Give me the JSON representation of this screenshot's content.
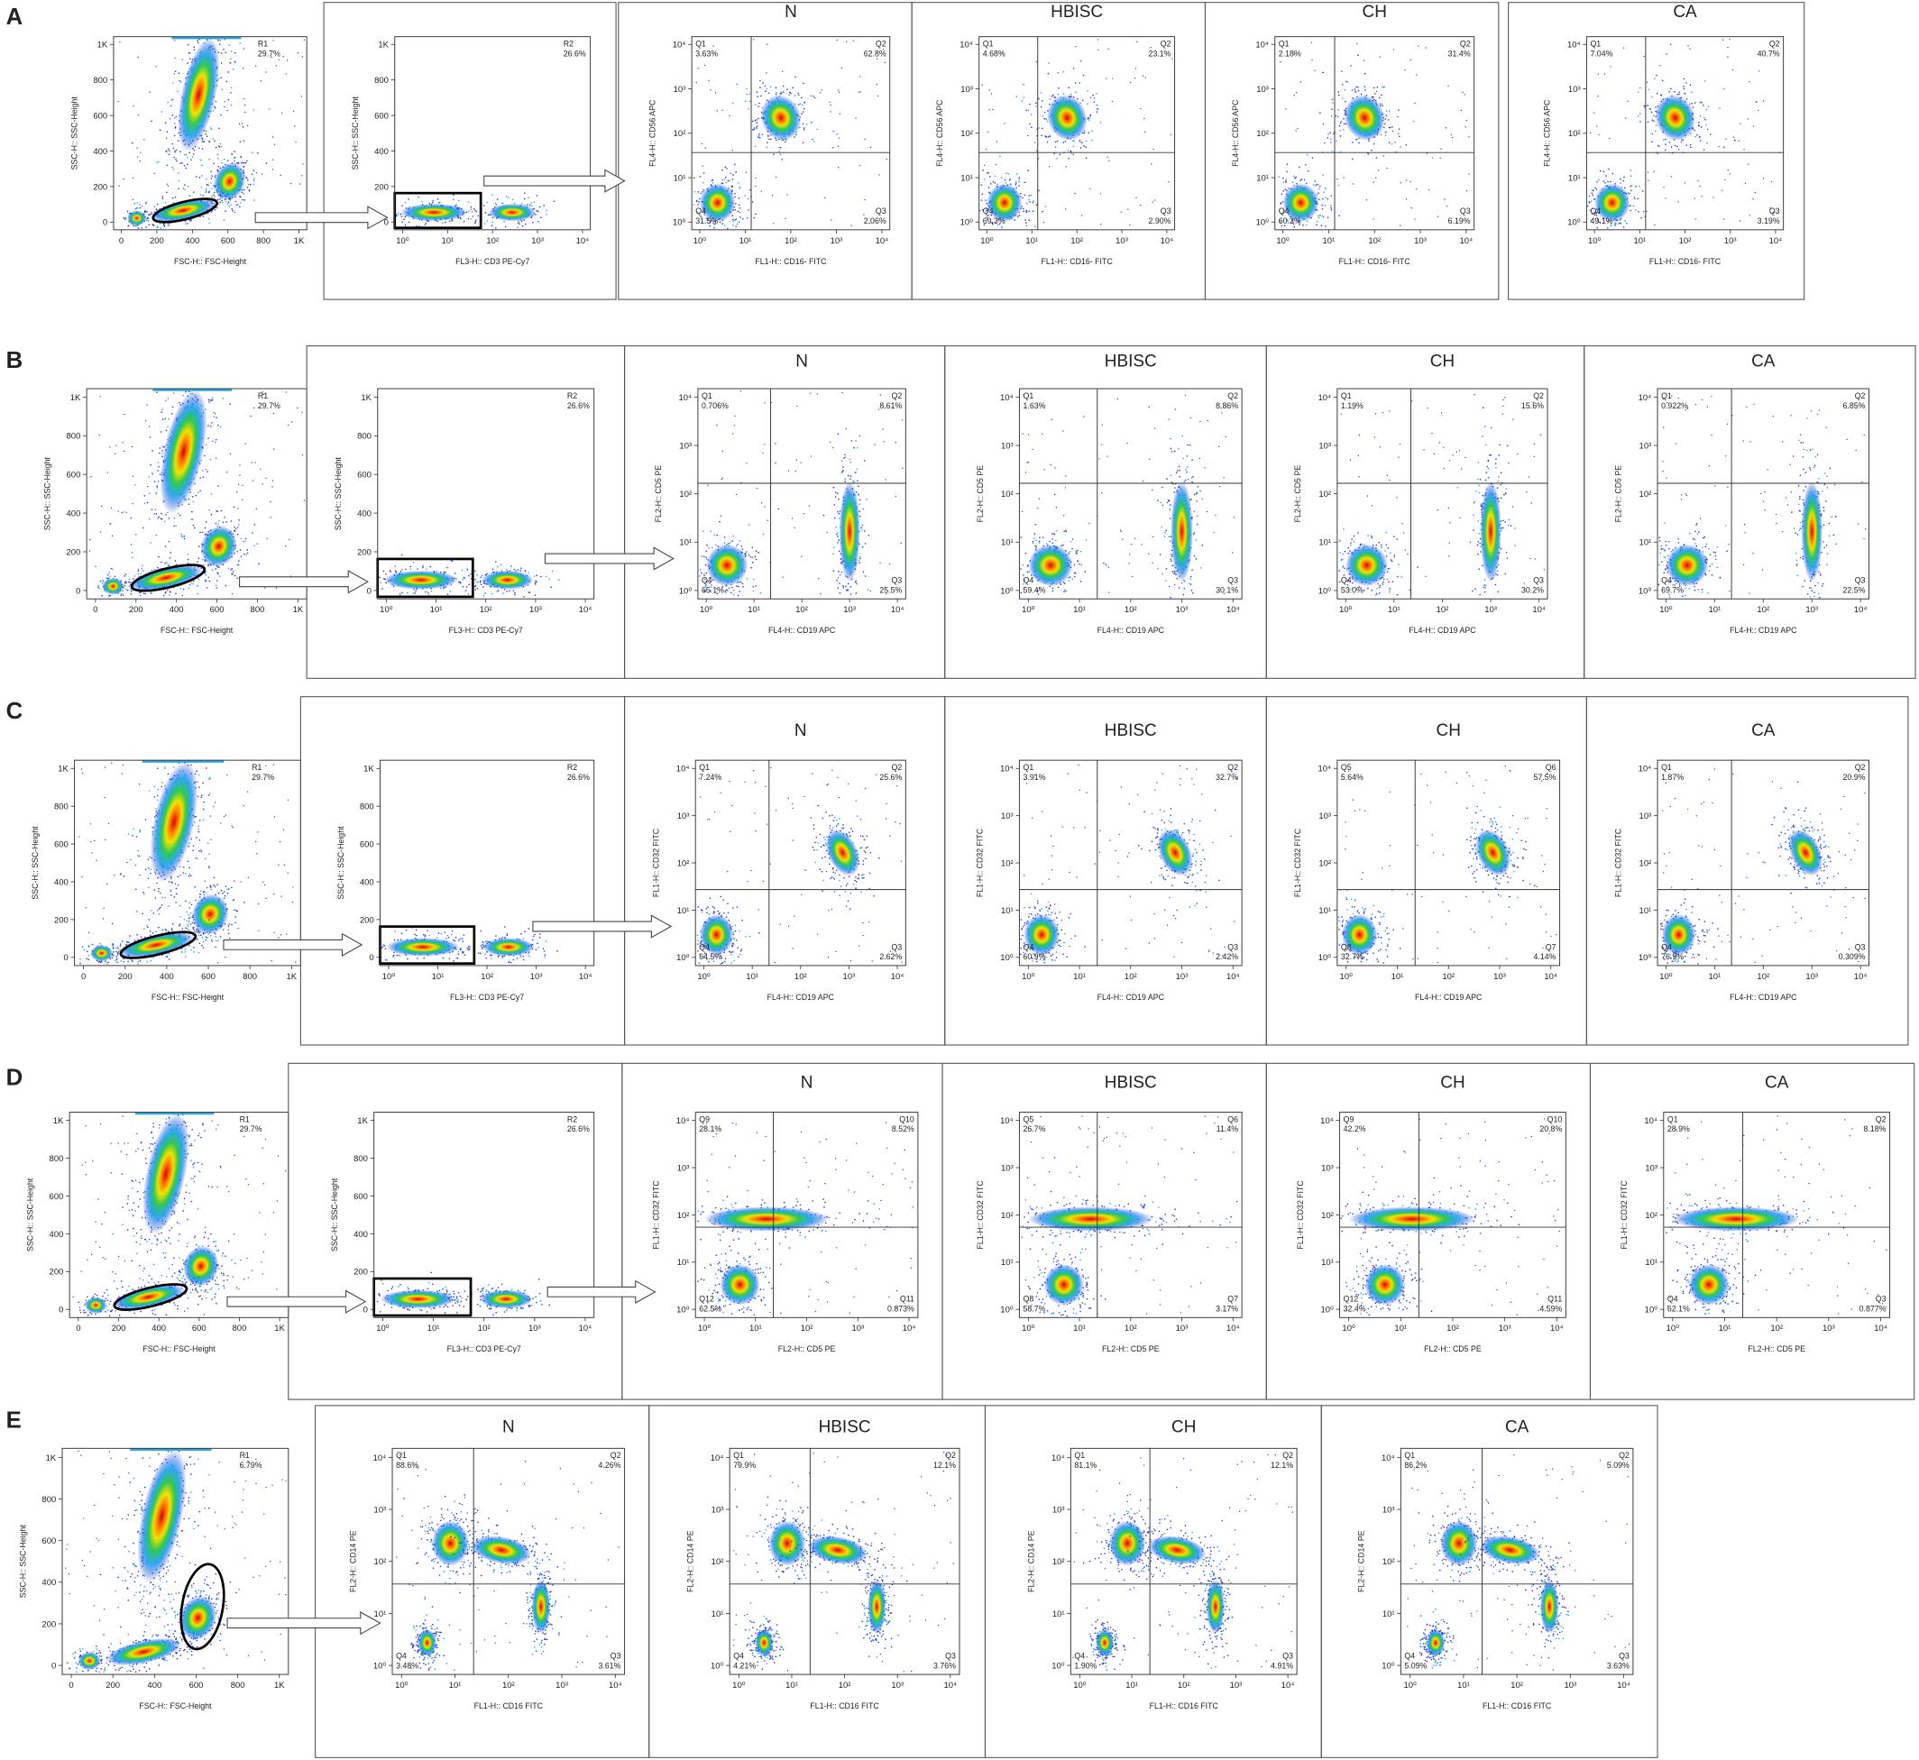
{
  "axes": {
    "linear_ticks": [
      "0",
      "200",
      "400",
      "600",
      "800",
      "1K"
    ],
    "log_ticks": [
      "10⁰",
      "10¹",
      "10²",
      "10³",
      "10⁴"
    ]
  },
  "rows": [
    {
      "letter": "A",
      "gate1": {
        "label": "R1",
        "pct": "29.7%",
        "xlabel": "FSC-H:: FSC-Height",
        "ylabel": "SSC-H:: SSC-Height"
      },
      "gate2": {
        "label": "R2",
        "pct": "26.6%",
        "xlabel": "FL3-H:: CD3 PE-Cy7",
        "ylabel": "SSC-H:: SSC-Height"
      },
      "xlabel": "FL1-H:: CD16- FITC",
      "ylabel": "FL4-H:: CD56 APC",
      "plots": [
        {
          "title": "N",
          "quadrants": [
            {
              "name": "Q1",
              "pct": "3.63%"
            },
            {
              "name": "Q2",
              "pct": "62.8%"
            },
            {
              "name": "Q3",
              "pct": "2.06%"
            },
            {
              "name": "Q4",
              "pct": "31.5%"
            }
          ]
        },
        {
          "title": "HBISC",
          "quadrants": [
            {
              "name": "Q1",
              "pct": "4.68%"
            },
            {
              "name": "Q2",
              "pct": "23.1%"
            },
            {
              "name": "Q3",
              "pct": "2.90%"
            },
            {
              "name": "Q4",
              "pct": "69.3%"
            }
          ]
        },
        {
          "title": "CH",
          "quadrants": [
            {
              "name": "Q1",
              "pct": "2.18%"
            },
            {
              "name": "Q2",
              "pct": "31.4%"
            },
            {
              "name": "Q3",
              "pct": "6.19%"
            },
            {
              "name": "Q4",
              "pct": "60.3%"
            }
          ]
        },
        {
          "title": "CA",
          "quadrants": [
            {
              "name": "Q1",
              "pct": "7.04%"
            },
            {
              "name": "Q2",
              "pct": "40.7%"
            },
            {
              "name": "Q3",
              "pct": "3.19%"
            },
            {
              "name": "Q4",
              "pct": "49.1%"
            }
          ]
        }
      ]
    },
    {
      "letter": "B",
      "gate1": {
        "label": "R1",
        "pct": "29.7%",
        "xlabel": "FSC-H:: FSC-Height",
        "ylabel": "SSC-H:: SSC-Height"
      },
      "gate2": {
        "label": "R2",
        "pct": "26.6%",
        "xlabel": "FL3-H:: CD3 PE-Cy7",
        "ylabel": "SSC-H:: SSC-Height"
      },
      "xlabel": "FL4-H:: CD19 APC",
      "ylabel": "FL2-H:: CD5 PE",
      "plots": [
        {
          "title": "N",
          "quadrants": [
            {
              "name": "Q1",
              "pct": "0.706%"
            },
            {
              "name": "Q2",
              "pct": "8.61%"
            },
            {
              "name": "Q3",
              "pct": "25.5%"
            },
            {
              "name": "Q4",
              "pct": "65.1%"
            }
          ]
        },
        {
          "title": "HBISC",
          "quadrants": [
            {
              "name": "Q1",
              "pct": "1.63%"
            },
            {
              "name": "Q2",
              "pct": "8.86%"
            },
            {
              "name": "Q3",
              "pct": "30.1%"
            },
            {
              "name": "Q4",
              "pct": "59.4%"
            }
          ]
        },
        {
          "title": "CH",
          "quadrants": [
            {
              "name": "Q1",
              "pct": "1.19%"
            },
            {
              "name": "Q2",
              "pct": "15.6%"
            },
            {
              "name": "Q3",
              "pct": "30.2%"
            },
            {
              "name": "Q4",
              "pct": "53.0%"
            }
          ]
        },
        {
          "title": "CA",
          "quadrants": [
            {
              "name": "Q1",
              "pct": "0.922%"
            },
            {
              "name": "Q2",
              "pct": "6.85%"
            },
            {
              "name": "Q3",
              "pct": "22.5%"
            },
            {
              "name": "Q4",
              "pct": "69.7%"
            }
          ]
        }
      ]
    },
    {
      "letter": "C",
      "gate1": {
        "label": "R1",
        "pct": "29.7%",
        "xlabel": "FSC-H:: FSC-Height",
        "ylabel": "SSC-H:: SSC-Height"
      },
      "gate2": {
        "label": "R2",
        "pct": "26.6%",
        "xlabel": "FL3-H:: CD3 PE-Cy7",
        "ylabel": "SSC-H:: SSC-Height"
      },
      "xlabel": "FL4-H:: CD19 APC",
      "ylabel": "FL1-H:: CD32 FITC",
      "plots": [
        {
          "title": "N",
          "quadrants": [
            {
              "name": "Q1",
              "pct": "7.24%"
            },
            {
              "name": "Q2",
              "pct": "25.6%"
            },
            {
              "name": "Q3",
              "pct": "2.62%"
            },
            {
              "name": "Q4",
              "pct": "64.5%"
            }
          ]
        },
        {
          "title": "HBISC",
          "quadrants": [
            {
              "name": "Q1",
              "pct": "3.91%"
            },
            {
              "name": "Q2",
              "pct": "32.7%"
            },
            {
              "name": "Q3",
              "pct": "2.42%"
            },
            {
              "name": "Q4",
              "pct": "60.9%"
            }
          ]
        },
        {
          "title": "CH",
          "quadrants": [
            {
              "name": "Q5",
              "pct": "5.64%"
            },
            {
              "name": "Q6",
              "pct": "57.5%"
            },
            {
              "name": "Q7",
              "pct": "4.14%"
            },
            {
              "name": "Q8",
              "pct": "32.7%"
            }
          ]
        },
        {
          "title": "CA",
          "quadrants": [
            {
              "name": "Q1",
              "pct": "1.87%"
            },
            {
              "name": "Q2",
              "pct": "20.9%"
            },
            {
              "name": "Q3",
              "pct": "0.309%"
            },
            {
              "name": "Q4",
              "pct": "76.9%"
            }
          ]
        }
      ]
    },
    {
      "letter": "D",
      "gate1": {
        "label": "R1",
        "pct": "29.7%",
        "xlabel": "FSC-H:: FSC-Height",
        "ylabel": "SSC-H:: SSC-Height"
      },
      "gate2": {
        "label": "R2",
        "pct": "26.6%",
        "xlabel": "FL3-H:: CD3 PE-Cy7",
        "ylabel": "SSC-H:: SSC-Height"
      },
      "xlabel": "FL2-H:: CD5 PE",
      "ylabel": "FL1-H:: CD32 FITC",
      "plots": [
        {
          "title": "N",
          "quadrants": [
            {
              "name": "Q9",
              "pct": "28.1%"
            },
            {
              "name": "Q10",
              "pct": "8.52%"
            },
            {
              "name": "Q11",
              "pct": "0.873%"
            },
            {
              "name": "Q12",
              "pct": "62.5%"
            }
          ]
        },
        {
          "title": "HBISC",
          "quadrants": [
            {
              "name": "Q5",
              "pct": "26.7%"
            },
            {
              "name": "Q6",
              "pct": "11.4%"
            },
            {
              "name": "Q7",
              "pct": "3.17%"
            },
            {
              "name": "Q8",
              "pct": "58.7%"
            }
          ]
        },
        {
          "title": "CH",
          "quadrants": [
            {
              "name": "Q9",
              "pct": "42.2%"
            },
            {
              "name": "Q10",
              "pct": "20.8%"
            },
            {
              "name": "Q11",
              "pct": "4.59%"
            },
            {
              "name": "Q12",
              "pct": "32.4%"
            }
          ]
        },
        {
          "title": "CA",
          "quadrants": [
            {
              "name": "Q1",
              "pct": "28.9%"
            },
            {
              "name": "Q2",
              "pct": "8.18%"
            },
            {
              "name": "Q3",
              "pct": "0.877%"
            },
            {
              "name": "Q4",
              "pct": "62.1%"
            }
          ]
        }
      ]
    },
    {
      "letter": "E",
      "gate1": {
        "label": "R1",
        "pct": "6.79%",
        "xlabel": "FSC-H:: FSC-Height",
        "ylabel": "SSC-H:: SSC-Height"
      },
      "xlabel": "FL1-H:: CD16 FITC",
      "ylabel": "FL2-H:: CD14 PE",
      "plots": [
        {
          "title": "N",
          "quadrants": [
            {
              "name": "Q1",
              "pct": "88.6%"
            },
            {
              "name": "Q2",
              "pct": "4.26%"
            },
            {
              "name": "Q3",
              "pct": "3.61%"
            },
            {
              "name": "Q4",
              "pct": "3.48%"
            }
          ]
        },
        {
          "title": "HBISC",
          "quadrants": [
            {
              "name": "Q1",
              "pct": "79.9%"
            },
            {
              "name": "Q2",
              "pct": "12.1%"
            },
            {
              "name": "Q3",
              "pct": "3.76%"
            },
            {
              "name": "Q4",
              "pct": "4.21%"
            }
          ]
        },
        {
          "title": "CH",
          "quadrants": [
            {
              "name": "Q1",
              "pct": "81.1%"
            },
            {
              "name": "Q2",
              "pct": "12.1%"
            },
            {
              "name": "Q3",
              "pct": "4.91%"
            },
            {
              "name": "Q4",
              "pct": "1.90%"
            }
          ]
        },
        {
          "title": "CA",
          "quadrants": [
            {
              "name": "Q1",
              "pct": "86.2%"
            },
            {
              "name": "Q2",
              "pct": "5.09%"
            },
            {
              "name": "Q3",
              "pct": "3.63%"
            },
            {
              "name": "Q4",
              "pct": "5.09%"
            }
          ]
        }
      ]
    }
  ]
}
